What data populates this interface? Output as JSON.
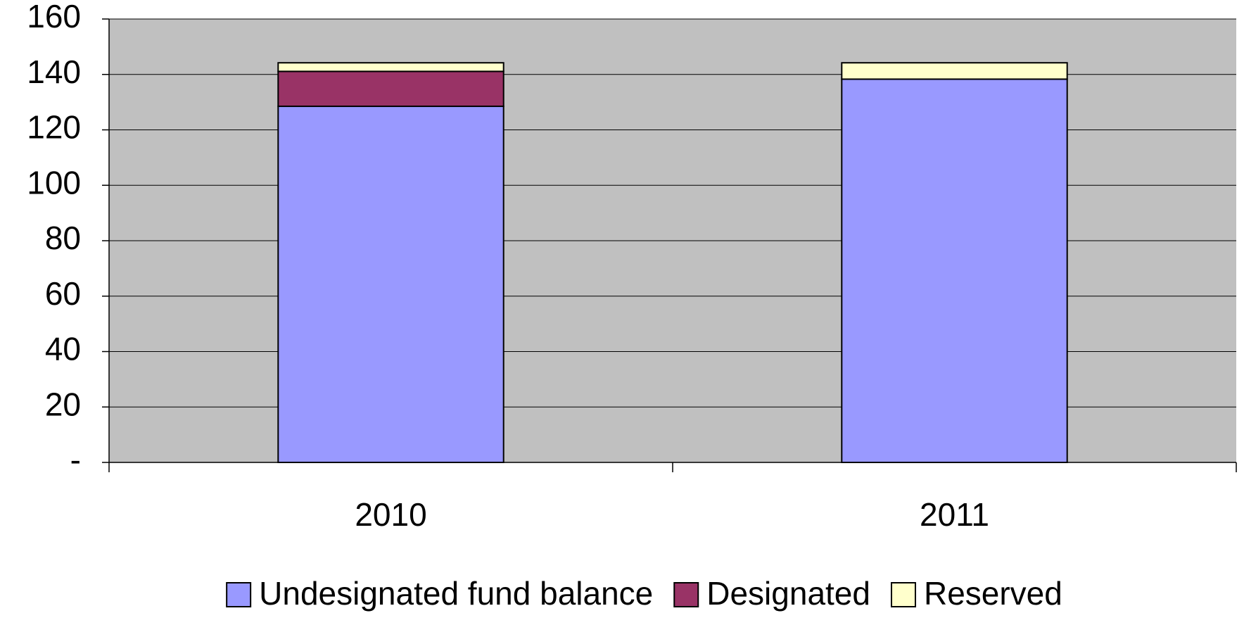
{
  "chart_data": {
    "type": "stacked_bar",
    "categories": [
      "2010",
      "2011"
    ],
    "series": [
      {
        "name": "Undesignated fund balance",
        "color": "#9999ff",
        "values": [
          128.5,
          138.3
        ]
      },
      {
        "name": "Designated",
        "color": "#993366",
        "values": [
          12.6,
          0
        ]
      },
      {
        "name": "Reserved",
        "color": "#ffffcc",
        "values": [
          3.1,
          5.9
        ]
      }
    ],
    "ylim": [
      0,
      160
    ],
    "yticks": [
      {
        "value": 0,
        "label": "-"
      },
      20,
      40,
      60,
      80,
      100,
      120,
      140,
      160
    ],
    "grid": true,
    "plot_background": "#c0c0c0",
    "legend": "bottom"
  }
}
